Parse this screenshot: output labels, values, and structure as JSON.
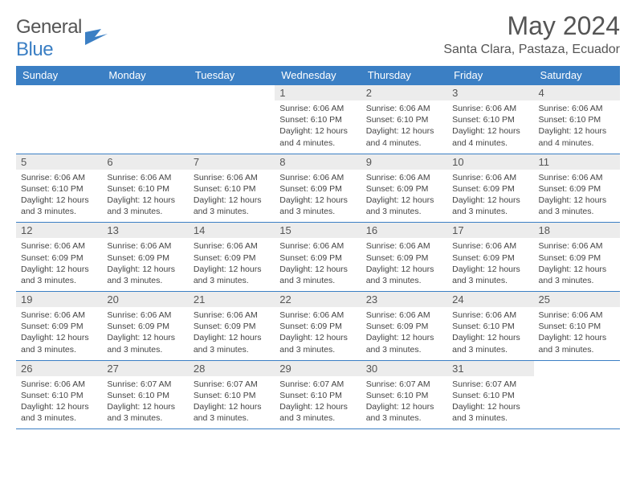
{
  "brand": {
    "part1": "General",
    "part2": "Blue"
  },
  "title": "May 2024",
  "location": "Santa Clara, Pastaza, Ecuador",
  "colors": {
    "header_bg": "#3b7fc4",
    "header_text": "#ffffff",
    "daynum_bg": "#ececec",
    "border": "#3b7fc4",
    "body_text": "#444444",
    "title_text": "#555555"
  },
  "weekdays": [
    "Sunday",
    "Monday",
    "Tuesday",
    "Wednesday",
    "Thursday",
    "Friday",
    "Saturday"
  ],
  "weeks": [
    [
      {
        "n": "",
        "sr": "",
        "ss": "",
        "dl": ""
      },
      {
        "n": "",
        "sr": "",
        "ss": "",
        "dl": ""
      },
      {
        "n": "",
        "sr": "",
        "ss": "",
        "dl": ""
      },
      {
        "n": "1",
        "sr": "Sunrise: 6:06 AM",
        "ss": "Sunset: 6:10 PM",
        "dl": "Daylight: 12 hours and 4 minutes."
      },
      {
        "n": "2",
        "sr": "Sunrise: 6:06 AM",
        "ss": "Sunset: 6:10 PM",
        "dl": "Daylight: 12 hours and 4 minutes."
      },
      {
        "n": "3",
        "sr": "Sunrise: 6:06 AM",
        "ss": "Sunset: 6:10 PM",
        "dl": "Daylight: 12 hours and 4 minutes."
      },
      {
        "n": "4",
        "sr": "Sunrise: 6:06 AM",
        "ss": "Sunset: 6:10 PM",
        "dl": "Daylight: 12 hours and 4 minutes."
      }
    ],
    [
      {
        "n": "5",
        "sr": "Sunrise: 6:06 AM",
        "ss": "Sunset: 6:10 PM",
        "dl": "Daylight: 12 hours and 3 minutes."
      },
      {
        "n": "6",
        "sr": "Sunrise: 6:06 AM",
        "ss": "Sunset: 6:10 PM",
        "dl": "Daylight: 12 hours and 3 minutes."
      },
      {
        "n": "7",
        "sr": "Sunrise: 6:06 AM",
        "ss": "Sunset: 6:10 PM",
        "dl": "Daylight: 12 hours and 3 minutes."
      },
      {
        "n": "8",
        "sr": "Sunrise: 6:06 AM",
        "ss": "Sunset: 6:09 PM",
        "dl": "Daylight: 12 hours and 3 minutes."
      },
      {
        "n": "9",
        "sr": "Sunrise: 6:06 AM",
        "ss": "Sunset: 6:09 PM",
        "dl": "Daylight: 12 hours and 3 minutes."
      },
      {
        "n": "10",
        "sr": "Sunrise: 6:06 AM",
        "ss": "Sunset: 6:09 PM",
        "dl": "Daylight: 12 hours and 3 minutes."
      },
      {
        "n": "11",
        "sr": "Sunrise: 6:06 AM",
        "ss": "Sunset: 6:09 PM",
        "dl": "Daylight: 12 hours and 3 minutes."
      }
    ],
    [
      {
        "n": "12",
        "sr": "Sunrise: 6:06 AM",
        "ss": "Sunset: 6:09 PM",
        "dl": "Daylight: 12 hours and 3 minutes."
      },
      {
        "n": "13",
        "sr": "Sunrise: 6:06 AM",
        "ss": "Sunset: 6:09 PM",
        "dl": "Daylight: 12 hours and 3 minutes."
      },
      {
        "n": "14",
        "sr": "Sunrise: 6:06 AM",
        "ss": "Sunset: 6:09 PM",
        "dl": "Daylight: 12 hours and 3 minutes."
      },
      {
        "n": "15",
        "sr": "Sunrise: 6:06 AM",
        "ss": "Sunset: 6:09 PM",
        "dl": "Daylight: 12 hours and 3 minutes."
      },
      {
        "n": "16",
        "sr": "Sunrise: 6:06 AM",
        "ss": "Sunset: 6:09 PM",
        "dl": "Daylight: 12 hours and 3 minutes."
      },
      {
        "n": "17",
        "sr": "Sunrise: 6:06 AM",
        "ss": "Sunset: 6:09 PM",
        "dl": "Daylight: 12 hours and 3 minutes."
      },
      {
        "n": "18",
        "sr": "Sunrise: 6:06 AM",
        "ss": "Sunset: 6:09 PM",
        "dl": "Daylight: 12 hours and 3 minutes."
      }
    ],
    [
      {
        "n": "19",
        "sr": "Sunrise: 6:06 AM",
        "ss": "Sunset: 6:09 PM",
        "dl": "Daylight: 12 hours and 3 minutes."
      },
      {
        "n": "20",
        "sr": "Sunrise: 6:06 AM",
        "ss": "Sunset: 6:09 PM",
        "dl": "Daylight: 12 hours and 3 minutes."
      },
      {
        "n": "21",
        "sr": "Sunrise: 6:06 AM",
        "ss": "Sunset: 6:09 PM",
        "dl": "Daylight: 12 hours and 3 minutes."
      },
      {
        "n": "22",
        "sr": "Sunrise: 6:06 AM",
        "ss": "Sunset: 6:09 PM",
        "dl": "Daylight: 12 hours and 3 minutes."
      },
      {
        "n": "23",
        "sr": "Sunrise: 6:06 AM",
        "ss": "Sunset: 6:09 PM",
        "dl": "Daylight: 12 hours and 3 minutes."
      },
      {
        "n": "24",
        "sr": "Sunrise: 6:06 AM",
        "ss": "Sunset: 6:10 PM",
        "dl": "Daylight: 12 hours and 3 minutes."
      },
      {
        "n": "25",
        "sr": "Sunrise: 6:06 AM",
        "ss": "Sunset: 6:10 PM",
        "dl": "Daylight: 12 hours and 3 minutes."
      }
    ],
    [
      {
        "n": "26",
        "sr": "Sunrise: 6:06 AM",
        "ss": "Sunset: 6:10 PM",
        "dl": "Daylight: 12 hours and 3 minutes."
      },
      {
        "n": "27",
        "sr": "Sunrise: 6:07 AM",
        "ss": "Sunset: 6:10 PM",
        "dl": "Daylight: 12 hours and 3 minutes."
      },
      {
        "n": "28",
        "sr": "Sunrise: 6:07 AM",
        "ss": "Sunset: 6:10 PM",
        "dl": "Daylight: 12 hours and 3 minutes."
      },
      {
        "n": "29",
        "sr": "Sunrise: 6:07 AM",
        "ss": "Sunset: 6:10 PM",
        "dl": "Daylight: 12 hours and 3 minutes."
      },
      {
        "n": "30",
        "sr": "Sunrise: 6:07 AM",
        "ss": "Sunset: 6:10 PM",
        "dl": "Daylight: 12 hours and 3 minutes."
      },
      {
        "n": "31",
        "sr": "Sunrise: 6:07 AM",
        "ss": "Sunset: 6:10 PM",
        "dl": "Daylight: 12 hours and 3 minutes."
      },
      {
        "n": "",
        "sr": "",
        "ss": "",
        "dl": ""
      }
    ]
  ]
}
